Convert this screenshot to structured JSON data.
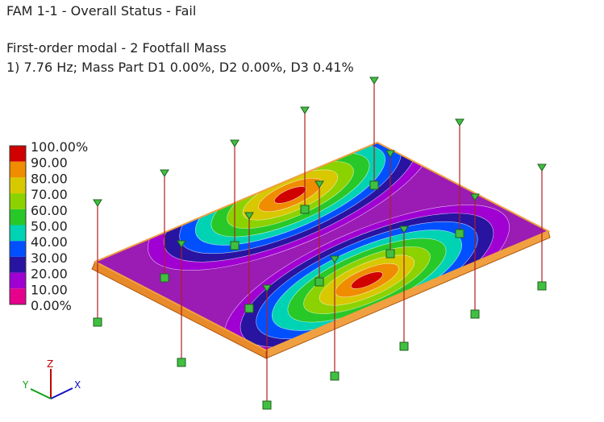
{
  "header": {
    "title": "FAM 1-1 - Overall Status - Fail",
    "subtitle": "First-order modal - 2 Footfall Mass",
    "mode": "1) 7.76 Hz; Mass Part D1 0.00%, D2 0.00%, D3 0.41%"
  },
  "legend": {
    "labels": [
      "100.00%",
      "90.00",
      "80.00",
      "70.00",
      "60.00",
      "50.00",
      "40.00",
      "30.00",
      "20.00",
      "10.00",
      "0.00%"
    ],
    "colors": [
      "#d00000",
      "#f08c00",
      "#d8c800",
      "#8cd200",
      "#28c828",
      "#00d2b4",
      "#0050ff",
      "#2814a0",
      "#a000d2",
      "#e6008c"
    ]
  },
  "triad": {
    "x": "X",
    "y": "Y",
    "z": "Z"
  }
}
